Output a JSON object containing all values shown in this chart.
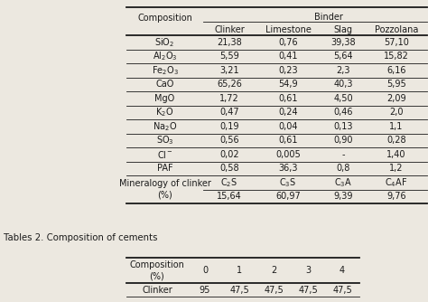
{
  "title2": "Tables 2. Composition of cements",
  "table1_rows": [
    [
      "SiO$_2$",
      "21,38",
      "0,76",
      "39,38",
      "57,10"
    ],
    [
      "Al$_2$O$_3$",
      "5,59",
      "0,41",
      "5,64",
      "15,82"
    ],
    [
      "Fe$_2$O$_3$",
      "3,21",
      "0,23",
      "2,3",
      "6,16"
    ],
    [
      "CaO",
      "65,26",
      "54,9",
      "40,3",
      "5,95"
    ],
    [
      "MgO",
      "1,72",
      "0,61",
      "4,50",
      "2,09"
    ],
    [
      "K$_2$O",
      "0,47",
      "0,24",
      "0,46",
      "2,0"
    ],
    [
      "Na$_2$O",
      "0,19",
      "0,04",
      "0,13",
      "1,1"
    ],
    [
      "SO$_3$",
      "0,56",
      "0,61",
      "0,90",
      "0,28"
    ],
    [
      "Cl$^-$",
      "0,02",
      "0,005",
      "-",
      "1,40"
    ],
    [
      "PAF",
      "0,58",
      "36,3",
      "0,8",
      "1,2"
    ]
  ],
  "table2_header": [
    "Composition\n(%)",
    "0",
    "1",
    "2",
    "3",
    "4"
  ],
  "table2_rows": [
    [
      "Clinker",
      "95",
      "47,5",
      "47,5",
      "47,5",
      "47,5"
    ]
  ],
  "bg_color": "#ece8e0",
  "font_size": 7.0,
  "font_color": "#1a1a1a"
}
